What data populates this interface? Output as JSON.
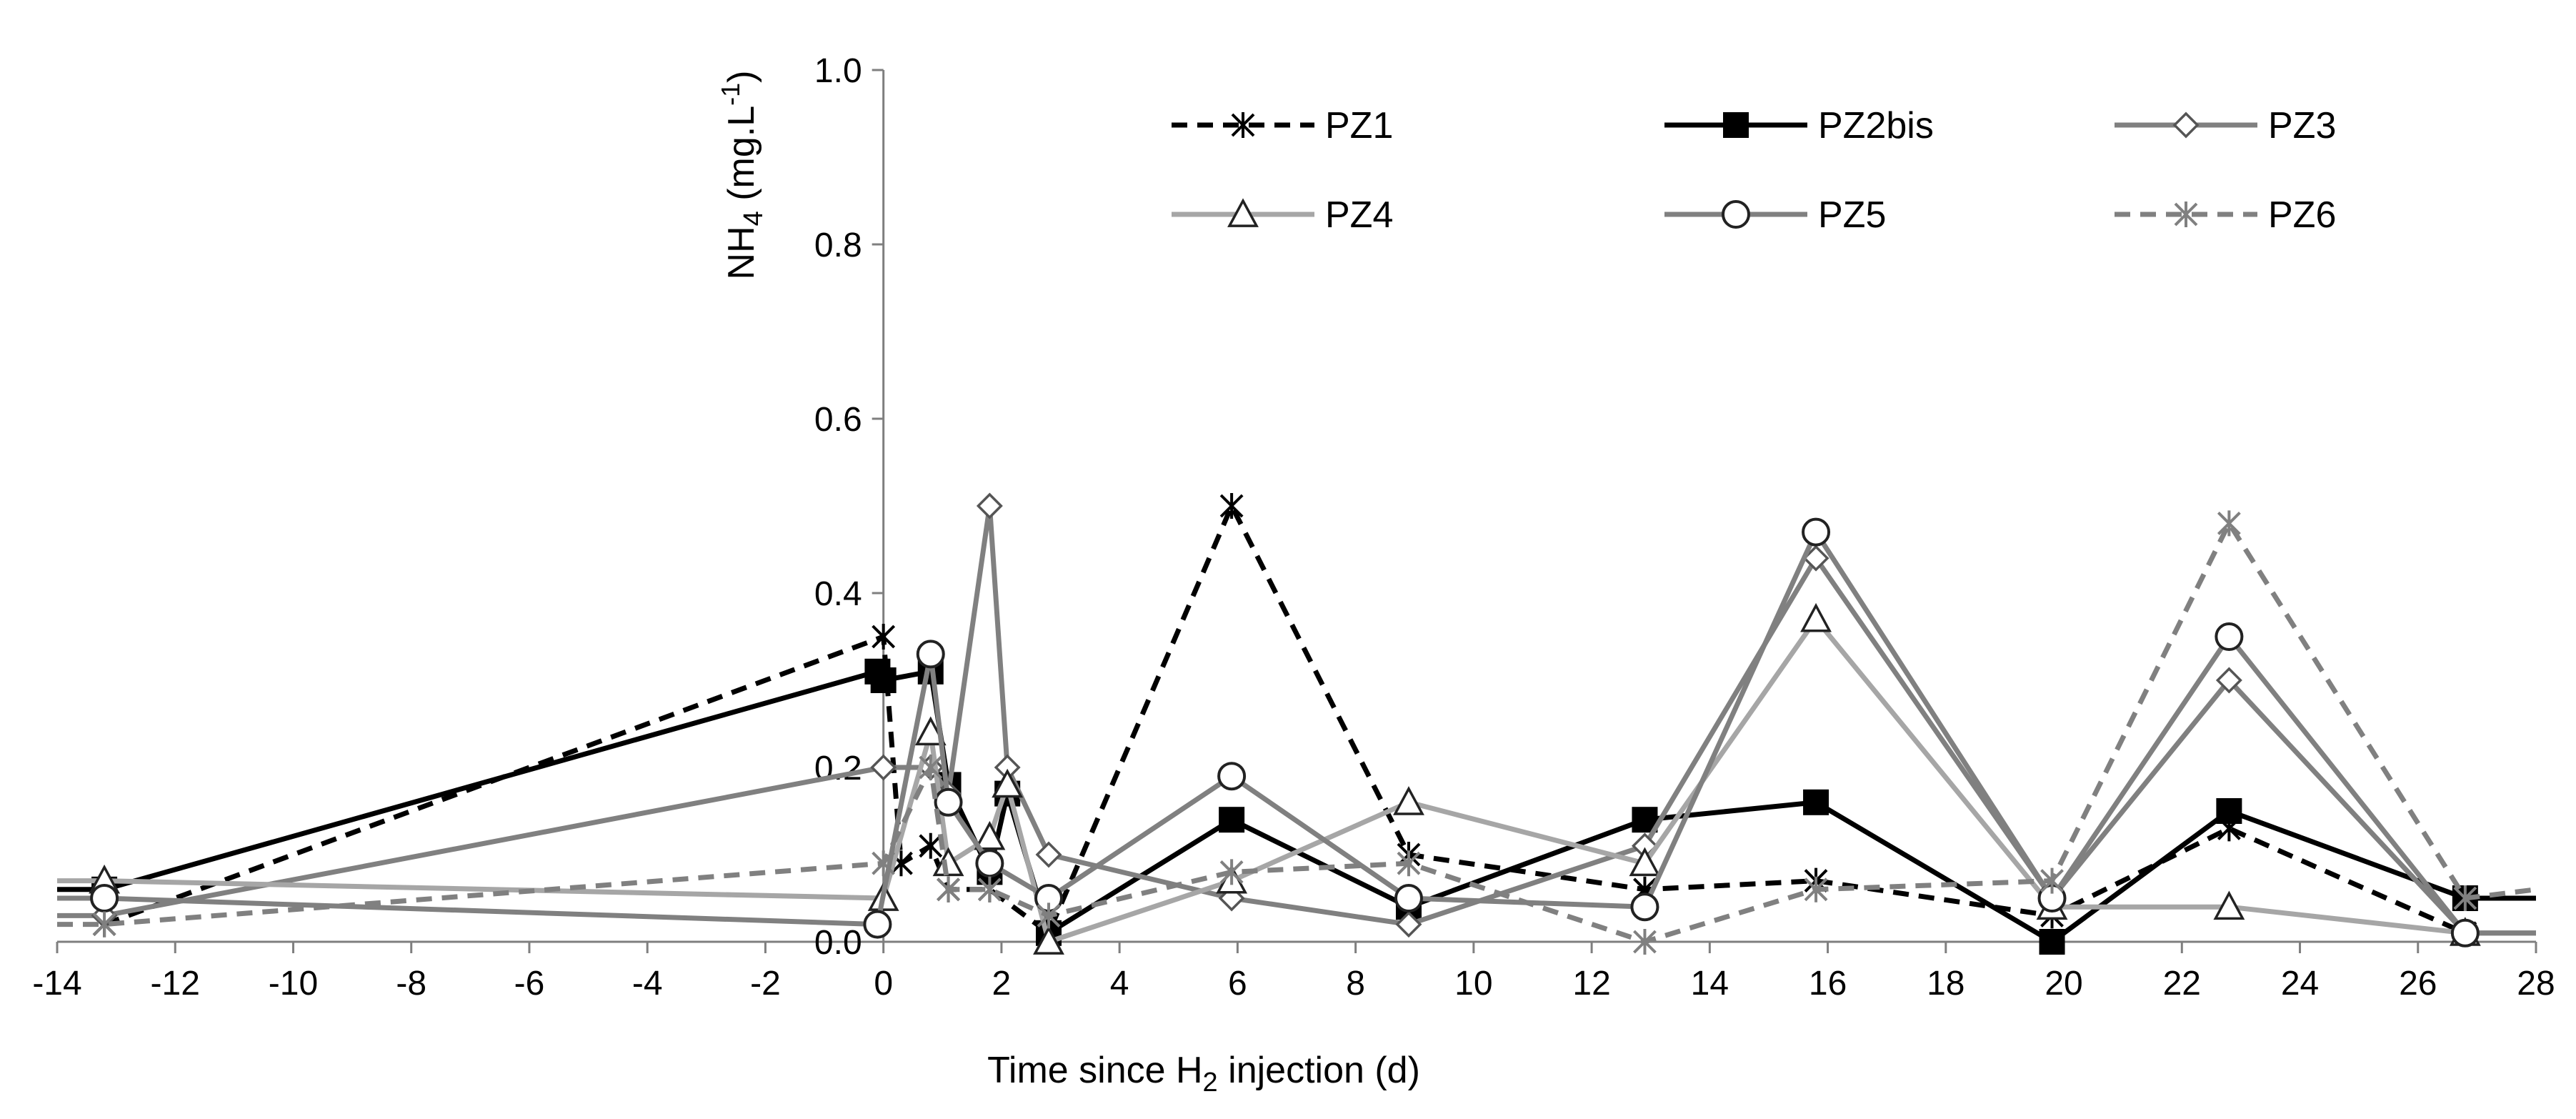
{
  "chart_data": {
    "type": "line",
    "title": "",
    "xlabel": {
      "prefix": "Time since H",
      "sub": "2",
      "suffix": " injection (d)"
    },
    "ylabel": {
      "prefix": "NH",
      "sub": "4",
      "mid": " (mg.L",
      "sup": "-1",
      "suffix": ")"
    },
    "xlim": [
      -14,
      28
    ],
    "ylim": [
      0,
      1.0
    ],
    "xticks": [
      "-14",
      "-12",
      "-10",
      "-8",
      "-6",
      "-4",
      "-2",
      "0",
      "2",
      "4",
      "6",
      "8",
      "10",
      "12",
      "14",
      "16",
      "18",
      "20",
      "22",
      "24",
      "26",
      "28"
    ],
    "yticks": [
      "0.0",
      "0.2",
      "0.4",
      "0.6",
      "0.8",
      "1.0"
    ],
    "grid": false,
    "legend_position": "top-right",
    "series": [
      {
        "name": "PZ1",
        "color": "#000000",
        "dash": "dashed",
        "marker": "asterisk",
        "points": [
          [
            -13.2,
            0.02
          ],
          [
            0,
            0.35
          ],
          [
            0.3,
            0.09
          ],
          [
            0.8,
            0.11
          ],
          [
            1.1,
            0.06
          ],
          [
            1.8,
            0.06
          ],
          [
            2.8,
            0.01
          ],
          [
            5.9,
            0.5
          ],
          [
            8.9,
            0.1
          ],
          [
            12.9,
            0.06
          ],
          [
            15.8,
            0.07
          ],
          [
            19.8,
            0.03
          ],
          [
            22.8,
            0.13
          ],
          [
            26.8,
            0.01
          ]
        ]
      },
      {
        "name": "PZ2bis",
        "color": "#000000",
        "dash": "solid",
        "marker": "square-filled",
        "points": [
          [
            -14,
            0.06
          ],
          [
            -13.2,
            0.06
          ],
          [
            -0.1,
            0.31
          ],
          [
            0,
            0.3
          ],
          [
            0.8,
            0.31
          ],
          [
            1.1,
            0.18
          ],
          [
            1.8,
            0.08
          ],
          [
            2.1,
            0.17
          ],
          [
            2.8,
            0.01
          ],
          [
            5.9,
            0.14
          ],
          [
            8.9,
            0.04
          ],
          [
            12.9,
            0.14
          ],
          [
            15.8,
            0.16
          ],
          [
            19.8,
            0.0
          ],
          [
            22.8,
            0.15
          ],
          [
            26.8,
            0.05
          ],
          [
            28,
            0.05
          ]
        ]
      },
      {
        "name": "PZ3",
        "color": "#808080",
        "dash": "solid",
        "marker": "diamond-open",
        "points": [
          [
            -14,
            0.03
          ],
          [
            -13.2,
            0.03
          ],
          [
            0,
            0.2
          ],
          [
            0.8,
            0.2
          ],
          [
            1.1,
            0.17
          ],
          [
            1.8,
            0.5
          ],
          [
            2.1,
            0.2
          ],
          [
            2.8,
            0.1
          ],
          [
            5.9,
            0.05
          ],
          [
            8.9,
            0.02
          ],
          [
            12.9,
            0.11
          ],
          [
            15.8,
            0.44
          ],
          [
            19.8,
            0.05
          ],
          [
            22.8,
            0.3
          ],
          [
            26.8,
            0.01
          ],
          [
            28,
            0.01
          ]
        ]
      },
      {
        "name": "PZ4",
        "color": "#a6a6a6",
        "dash": "solid",
        "marker": "triangle-open",
        "points": [
          [
            -14,
            0.07
          ],
          [
            -13.2,
            0.07
          ],
          [
            0,
            0.05
          ],
          [
            0.8,
            0.24
          ],
          [
            1.1,
            0.09
          ],
          [
            1.8,
            0.12
          ],
          [
            2.1,
            0.18
          ],
          [
            2.8,
            0.0
          ],
          [
            5.9,
            0.07
          ],
          [
            8.9,
            0.16
          ],
          [
            12.9,
            0.09
          ],
          [
            15.8,
            0.37
          ],
          [
            19.8,
            0.04
          ],
          [
            22.8,
            0.04
          ],
          [
            26.8,
            0.01
          ],
          [
            28,
            0.01
          ]
        ]
      },
      {
        "name": "PZ5",
        "color": "#808080",
        "dash": "solid",
        "marker": "circle-open",
        "points": [
          [
            -14,
            0.05
          ],
          [
            -13.2,
            0.05
          ],
          [
            -0.1,
            0.02
          ],
          [
            0.8,
            0.33
          ],
          [
            1.1,
            0.16
          ],
          [
            1.8,
            0.09
          ],
          [
            2.8,
            0.05
          ],
          [
            5.9,
            0.19
          ],
          [
            8.9,
            0.05
          ],
          [
            12.9,
            0.04
          ],
          [
            15.8,
            0.47
          ],
          [
            19.8,
            0.05
          ],
          [
            22.8,
            0.35
          ],
          [
            26.8,
            0.01
          ],
          [
            28,
            0.01
          ]
        ]
      },
      {
        "name": "PZ6",
        "color": "#808080",
        "dash": "dashed",
        "marker": "asterisk",
        "points": [
          [
            -14,
            0.02
          ],
          [
            -13.2,
            0.02
          ],
          [
            0,
            0.09
          ],
          [
            0.8,
            0.2
          ],
          [
            1.1,
            0.06
          ],
          [
            1.8,
            0.06
          ],
          [
            2.8,
            0.03
          ],
          [
            5.9,
            0.08
          ],
          [
            8.9,
            0.09
          ],
          [
            12.9,
            0.0
          ],
          [
            15.8,
            0.06
          ],
          [
            19.8,
            0.07
          ],
          [
            22.8,
            0.48
          ],
          [
            26.8,
            0.05
          ],
          [
            28,
            0.06
          ]
        ]
      }
    ]
  }
}
